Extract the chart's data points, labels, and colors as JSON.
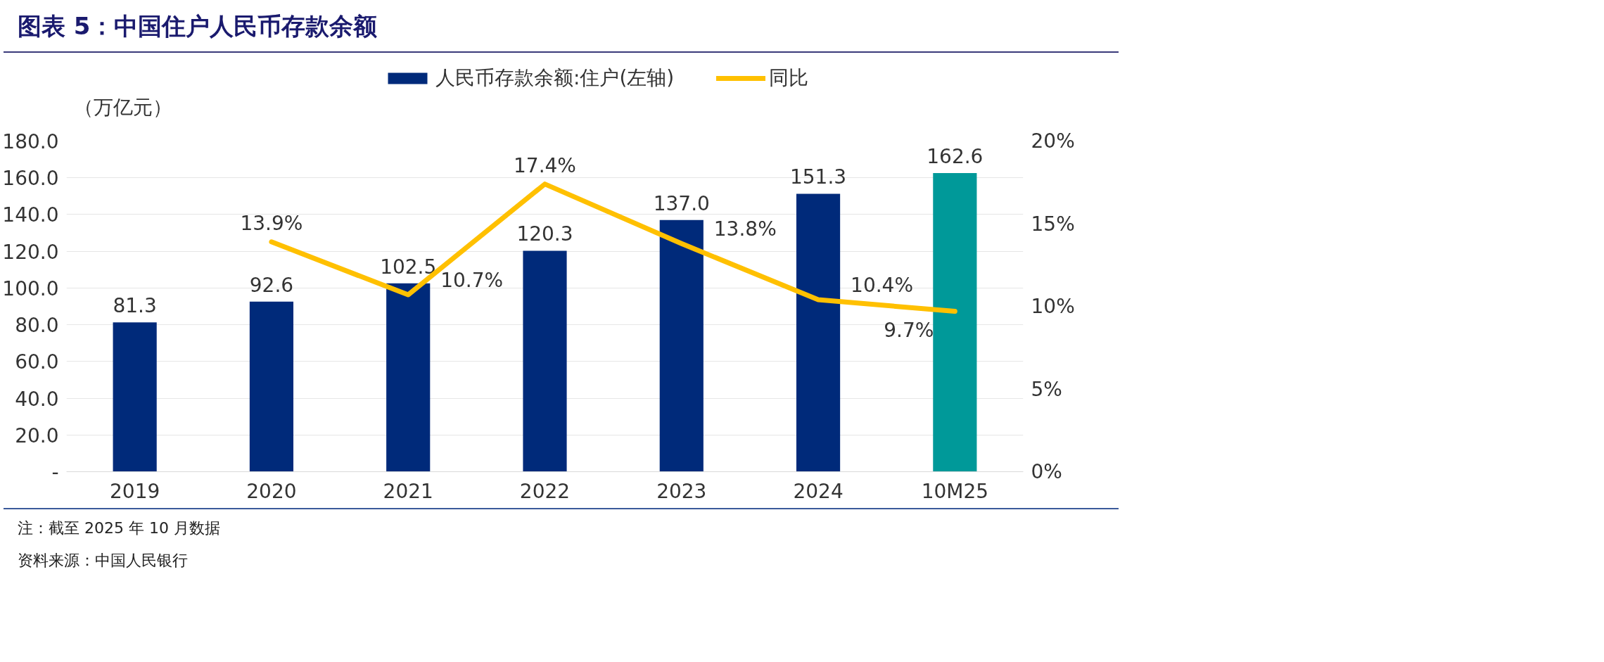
{
  "chart_data": {
    "type": "bar",
    "title": "图表 5：中国住户人民币存款余额",
    "ylabel": "（万亿元）",
    "categories": [
      "2019",
      "2020",
      "2021",
      "2022",
      "2023",
      "2024",
      "10M25"
    ],
    "series": [
      {
        "name": "人民币存款余额:住户(左轴)",
        "colors": [
          "#002a7a",
          "#002a7a",
          "#002a7a",
          "#002a7a",
          "#002a7a",
          "#002a7a",
          "#009999"
        ],
        "values": [
          81.3,
          92.6,
          102.5,
          120.3,
          137.0,
          151.3,
          162.6
        ],
        "value_labels": [
          "81.3",
          "92.6",
          "102.5",
          "120.3",
          "137.0",
          "151.3",
          "162.6"
        ]
      },
      {
        "name": "同比",
        "type": "line",
        "axis": "y2",
        "color": "#ffc000",
        "values": [
          null,
          13.9,
          10.7,
          17.4,
          13.8,
          10.4,
          9.7
        ],
        "value_labels": [
          null,
          "13.9%",
          "10.7%",
          "17.4%",
          "13.8%",
          "10.4%",
          "9.7%"
        ]
      }
    ],
    "ylim": [
      0,
      180
    ],
    "yticks": [
      {
        "value": 0,
        "label": "-"
      },
      {
        "value": 20,
        "label": "20.0"
      },
      {
        "value": 40,
        "label": "40.0"
      },
      {
        "value": 60,
        "label": "60.0"
      },
      {
        "value": 80,
        "label": "80.0"
      },
      {
        "value": 100,
        "label": "100.0"
      },
      {
        "value": 120,
        "label": "120.0"
      },
      {
        "value": 140,
        "label": "140.0"
      },
      {
        "value": 160,
        "label": "160.0"
      },
      {
        "value": 180,
        "label": "180.0"
      }
    ],
    "y2lim": [
      0,
      20
    ],
    "y2ticks": [
      {
        "value": 0,
        "label": "0%"
      },
      {
        "value": 5,
        "label": "5%"
      },
      {
        "value": 10,
        "label": "10%"
      },
      {
        "value": 15,
        "label": "15%"
      },
      {
        "value": 20,
        "label": "20%"
      }
    ],
    "grid": "y",
    "legend": "top",
    "annotations": [
      "注：截至 2025 年 10 月数据",
      "资料来源：中国人民银行"
    ]
  }
}
